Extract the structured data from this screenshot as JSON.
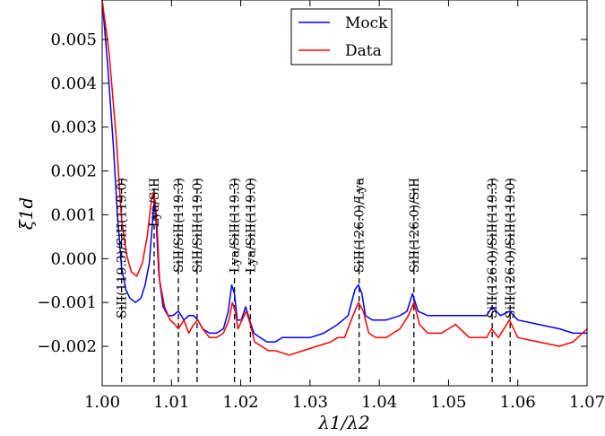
{
  "chart_data": {
    "type": "line",
    "title": "",
    "xlabel": "λ1/λ2",
    "ylabel": "ξ1d",
    "xlim": [
      1.0,
      1.07
    ],
    "ylim": [
      -0.0029,
      0.0059
    ],
    "x_ticks": [
      1.0,
      1.01,
      1.02,
      1.03,
      1.04,
      1.05,
      1.06,
      1.07
    ],
    "x_tick_labels": [
      "1.00",
      "1.01",
      "1.02",
      "1.03",
      "1.04",
      "1.05",
      "1.06",
      "1.07"
    ],
    "y_ticks": [
      -0.002,
      -0.001,
      0.0,
      0.001,
      0.002,
      0.003,
      0.004,
      0.005
    ],
    "y_tick_labels": [
      "−0.002",
      "−0.001",
      "0.000",
      "0.001",
      "0.002",
      "0.003",
      "0.004",
      "0.005"
    ],
    "grid": false,
    "legend": "top-center",
    "series": [
      {
        "name": "Mock",
        "color": "#0000ff",
        "x": [
          1.0,
          1.0008,
          1.0016,
          1.0022,
          1.0028,
          1.0034,
          1.004,
          1.0048,
          1.0056,
          1.0062,
          1.0068,
          1.0072,
          1.0075,
          1.0078,
          1.0082,
          1.0088,
          1.0095,
          1.0102,
          1.011,
          1.0118,
          1.0125,
          1.0132,
          1.0138,
          1.0145,
          1.0155,
          1.0165,
          1.0175,
          1.0182,
          1.0187,
          1.0191,
          1.0195,
          1.0201,
          1.0207,
          1.0213,
          1.0219,
          1.0228,
          1.0238,
          1.025,
          1.026,
          1.028,
          1.03,
          1.032,
          1.034,
          1.0355,
          1.0365,
          1.037,
          1.0375,
          1.038,
          1.039,
          1.041,
          1.043,
          1.044,
          1.0448,
          1.0456,
          1.047,
          1.05,
          1.053,
          1.0555,
          1.0563,
          1.0575,
          1.0588,
          1.06,
          1.063,
          1.066,
          1.068,
          1.07
        ],
        "y": [
          0.0059,
          0.0044,
          0.0026,
          0.001,
          -0.0002,
          -0.0007,
          -0.0009,
          -0.001,
          -0.0009,
          -0.0006,
          -0.0001,
          0.0007,
          0.0013,
          0.0008,
          -0.0004,
          -0.0011,
          -0.0013,
          -0.0013,
          -0.0012,
          -0.0014,
          -0.0013,
          -0.0013,
          -0.0014,
          -0.0016,
          -0.0017,
          -0.0017,
          -0.0016,
          -0.0012,
          -0.0006,
          -0.0008,
          -0.0014,
          -0.0014,
          -0.0011,
          -0.0014,
          -0.0017,
          -0.0018,
          -0.0019,
          -0.0019,
          -0.0018,
          -0.0018,
          -0.0018,
          -0.0017,
          -0.0015,
          -0.0013,
          -0.0007,
          -0.0006,
          -0.0008,
          -0.0013,
          -0.0014,
          -0.0014,
          -0.0013,
          -0.0012,
          -0.0008,
          -0.0012,
          -0.0013,
          -0.0013,
          -0.0013,
          -0.0013,
          -0.0011,
          -0.0013,
          -0.0012,
          -0.0014,
          -0.0015,
          -0.0016,
          -0.0017,
          -0.0017
        ]
      },
      {
        "name": "Data",
        "color": "#ff0000",
        "x": [
          1.0,
          1.001,
          1.002,
          1.0028,
          1.0035,
          1.0042,
          1.005,
          1.0058,
          1.0065,
          1.007,
          1.0073,
          1.0076,
          1.0079,
          1.0083,
          1.009,
          1.0098,
          1.0105,
          1.011,
          1.0118,
          1.0125,
          1.0132,
          1.0138,
          1.0145,
          1.0155,
          1.0165,
          1.0175,
          1.0183,
          1.0188,
          1.0192,
          1.0196,
          1.0202,
          1.0208,
          1.0214,
          1.022,
          1.023,
          1.024,
          1.025,
          1.027,
          1.029,
          1.031,
          1.033,
          1.034,
          1.035,
          1.0362,
          1.037,
          1.0377,
          1.0385,
          1.0395,
          1.041,
          1.043,
          1.0442,
          1.045,
          1.0458,
          1.047,
          1.049,
          1.051,
          1.053,
          1.0555,
          1.0562,
          1.0572,
          1.0588,
          1.06,
          1.063,
          1.066,
          1.068,
          1.07
        ],
        "y": [
          0.0059,
          0.0047,
          0.0028,
          0.0009,
          0.0001,
          -0.0003,
          -0.0004,
          -0.0001,
          0.0005,
          0.0012,
          0.0015,
          0.0014,
          0.0008,
          -0.0005,
          -0.0011,
          -0.0014,
          -0.0015,
          -0.0016,
          -0.0014,
          -0.0017,
          -0.0015,
          -0.0014,
          -0.0016,
          -0.0018,
          -0.0018,
          -0.0017,
          -0.0014,
          -0.001,
          -0.0012,
          -0.0016,
          -0.0014,
          -0.0012,
          -0.0015,
          -0.0019,
          -0.002,
          -0.0021,
          -0.0021,
          -0.0022,
          -0.0021,
          -0.002,
          -0.0019,
          -0.0018,
          -0.0018,
          -0.0013,
          -0.001,
          -0.0012,
          -0.0017,
          -0.0018,
          -0.0018,
          -0.0016,
          -0.0013,
          -0.001,
          -0.0015,
          -0.0017,
          -0.0017,
          -0.0015,
          -0.0018,
          -0.0018,
          -0.0016,
          -0.0018,
          -0.0014,
          -0.0018,
          -0.0019,
          -0.002,
          -0.0019,
          -0.0016
        ]
      }
    ],
    "annotations": [
      {
        "x": 1.0028,
        "label": "SiII(119.3)/SiII(119.0)"
      },
      {
        "x": 1.0075,
        "label": "Lya/SiII"
      },
      {
        "x": 1.011,
        "label": "SiII/SiII(119.3)"
      },
      {
        "x": 1.0137,
        "label": "SiII/SiII(119.0)"
      },
      {
        "x": 1.0191,
        "label": "Lya/SiII(119.3)"
      },
      {
        "x": 1.0214,
        "label": "Lya/SiII(119.0)"
      },
      {
        "x": 1.0371,
        "label": "SiII(126.0)/Lya"
      },
      {
        "x": 1.045,
        "label": "SiII(126.0)/SiII"
      },
      {
        "x": 1.0563,
        "label": "SiII(126.0)/SiII(119.3)"
      },
      {
        "x": 1.0589,
        "label": "SiII(126.0)/SiII(119.0)"
      }
    ]
  }
}
